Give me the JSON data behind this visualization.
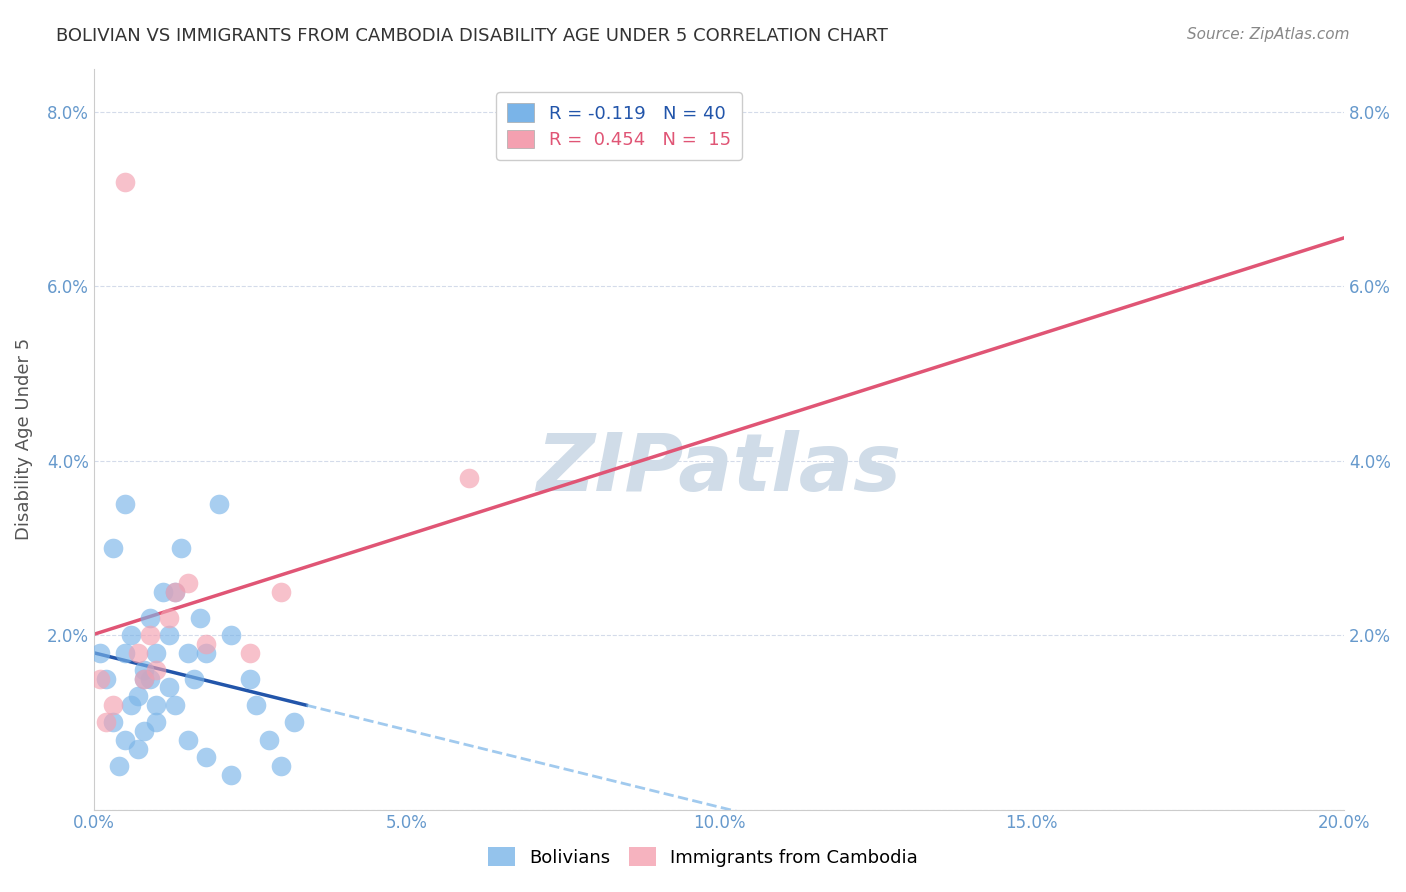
{
  "title": "BOLIVIAN VS IMMIGRANTS FROM CAMBODIA DISABILITY AGE UNDER 5 CORRELATION CHART",
  "source": "Source: ZipAtlas.com",
  "ylabel": "Disability Age Under 5",
  "xlim": [
    0.0,
    0.2
  ],
  "ylim": [
    0.0,
    0.085
  ],
  "xticks": [
    0.0,
    0.05,
    0.1,
    0.15,
    0.2
  ],
  "xticklabels": [
    "0.0%",
    "5.0%",
    "10.0%",
    "15.0%",
    "20.0%"
  ],
  "yticks": [
    0.0,
    0.02,
    0.04,
    0.06,
    0.08
  ],
  "yticklabels": [
    "",
    "2.0%",
    "4.0%",
    "6.0%",
    "8.0%"
  ],
  "bolivians": {
    "color": "#7ab4e8",
    "line_color": "#2255aa",
    "x": [
      0.002,
      0.003,
      0.004,
      0.005,
      0.005,
      0.006,
      0.007,
      0.007,
      0.008,
      0.008,
      0.009,
      0.009,
      0.01,
      0.01,
      0.011,
      0.012,
      0.012,
      0.013,
      0.014,
      0.015,
      0.016,
      0.017,
      0.018,
      0.02,
      0.022,
      0.025,
      0.026,
      0.028,
      0.03,
      0.032,
      0.001,
      0.003,
      0.005,
      0.006,
      0.008,
      0.01,
      0.013,
      0.015,
      0.018,
      0.022
    ],
    "y": [
      0.015,
      0.01,
      0.005,
      0.008,
      0.018,
      0.012,
      0.007,
      0.013,
      0.016,
      0.009,
      0.015,
      0.022,
      0.018,
      0.012,
      0.025,
      0.02,
      0.014,
      0.025,
      0.03,
      0.018,
      0.015,
      0.022,
      0.018,
      0.035,
      0.02,
      0.015,
      0.012,
      0.008,
      0.005,
      0.01,
      0.018,
      0.03,
      0.035,
      0.02,
      0.015,
      0.01,
      0.012,
      0.008,
      0.006,
      0.004
    ]
  },
  "cambodians": {
    "color": "#f4a0b0",
    "line_color": "#e05575",
    "x": [
      0.001,
      0.003,
      0.005,
      0.007,
      0.009,
      0.01,
      0.012,
      0.015,
      0.018,
      0.025,
      0.03,
      0.06,
      0.002,
      0.008,
      0.013
    ],
    "y": [
      0.015,
      0.012,
      0.072,
      0.018,
      0.02,
      0.016,
      0.022,
      0.026,
      0.019,
      0.018,
      0.025,
      0.038,
      0.01,
      0.015,
      0.025
    ]
  },
  "background_color": "#ffffff",
  "grid_color": "#d0d8e8",
  "title_color": "#333333",
  "axis_color": "#6699cc",
  "watermark": "ZIPatlas",
  "watermark_color": "#d0dce8",
  "legend_r1": "R = -0.119   N = 40",
  "legend_r2": "R =  0.454   N =  15",
  "legend_color1": "#2255aa",
  "legend_color2": "#e05575"
}
